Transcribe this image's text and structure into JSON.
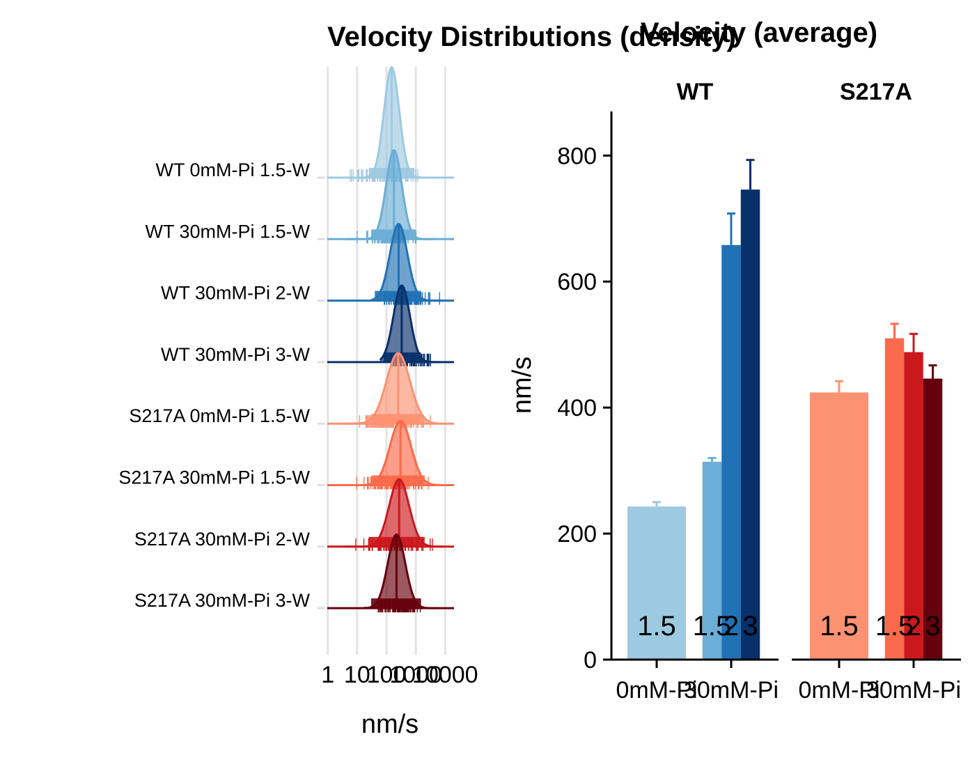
{
  "left_panel": {
    "title": "Velocity Distributions (density)",
    "xlabel": "nm/s",
    "x_ticks": [
      "1",
      "10",
      "100",
      "1000",
      "10000"
    ]
  },
  "right_panel": {
    "title": "Velocity (average)",
    "ylabel": "nm/s",
    "y_ticks": [
      "0",
      "200",
      "400",
      "600",
      "800"
    ],
    "x_ticks": [
      "0mM-Pi",
      "30mM-Pi"
    ]
  },
  "chart_data": [
    {
      "type": "area",
      "title": "Velocity Distributions (density)",
      "xlabel": "nm/s",
      "x_scale": "log10",
      "xlim": [
        0.5,
        20000
      ],
      "grid": true,
      "series": [
        {
          "name": "WT 0mM-Pi 1.5-W",
          "color": "#9ecae1",
          "peak": 150,
          "spread": 0.26,
          "height": 1.8,
          "range": [
            2,
            5000
          ],
          "box": [
            25,
            900
          ]
        },
        {
          "name": "WT 30mM-Pi 1.5-W",
          "color": "#6baed6",
          "peak": 180,
          "spread": 0.27,
          "height": 1.45,
          "range": [
            4,
            4000
          ],
          "box": [
            30,
            1000
          ]
        },
        {
          "name": "WT 30mM-Pi 2-W",
          "color": "#2171b5",
          "peak": 260,
          "spread": 0.3,
          "height": 1.25,
          "range": [
            30,
            9000
          ],
          "box": [
            40,
            1500
          ]
        },
        {
          "name": "WT 30mM-Pi 3-W",
          "color": "#08306b",
          "peak": 330,
          "spread": 0.28,
          "height": 1.25,
          "range": [
            60,
            7000
          ],
          "box": [
            80,
            1500
          ]
        },
        {
          "name": "S217A 0mM-Pi 1.5-W",
          "color": "#fc9272",
          "peak": 250,
          "spread": 0.4,
          "height": 1.15,
          "range": [
            3,
            6000
          ],
          "box": [
            30,
            1500
          ]
        },
        {
          "name": "S217A 30mM-Pi 1.5-W",
          "color": "#fb6a4a",
          "peak": 300,
          "spread": 0.36,
          "height": 1.05,
          "range": [
            5,
            8000
          ],
          "box": [
            30,
            2000
          ]
        },
        {
          "name": "S217A 30mM-Pi 2-W",
          "color": "#cb181d",
          "peak": 270,
          "spread": 0.34,
          "height": 1.1,
          "range": [
            4,
            9000
          ],
          "box": [
            25,
            2000
          ]
        },
        {
          "name": "S217A 30mM-Pi 3-W",
          "color": "#67000d",
          "peak": 220,
          "spread": 0.3,
          "height": 1.2,
          "range": [
            20,
            6000
          ],
          "box": [
            30,
            1500
          ]
        }
      ]
    },
    {
      "type": "bar",
      "title": "Velocity (average)",
      "ylabel": "nm/s",
      "ylim": [
        0,
        870
      ],
      "facets": [
        "WT",
        "S217A"
      ],
      "categories": [
        "0mM-Pi",
        "30mM-Pi"
      ],
      "bars": [
        {
          "facet": "WT",
          "category": "0mM-Pi",
          "label": "1.5",
          "value": 243,
          "error": 7,
          "color": "#9ecae1"
        },
        {
          "facet": "WT",
          "category": "30mM-Pi",
          "label": "1.5",
          "value": 314,
          "error": 6,
          "color": "#6baed6"
        },
        {
          "facet": "WT",
          "category": "30mM-Pi",
          "label": "2",
          "value": 658,
          "error": 50,
          "color": "#2171b5"
        },
        {
          "facet": "WT",
          "category": "30mM-Pi",
          "label": "3",
          "value": 746,
          "error": 47,
          "color": "#08306b"
        },
        {
          "facet": "S217A",
          "category": "0mM-Pi",
          "label": "1.5",
          "value": 424,
          "error": 18,
          "color": "#fc9272"
        },
        {
          "facet": "S217A",
          "category": "30mM-Pi",
          "label": "1.5",
          "value": 510,
          "error": 23,
          "color": "#fb6a4a"
        },
        {
          "facet": "S217A",
          "category": "30mM-Pi",
          "label": "2",
          "value": 488,
          "error": 29,
          "color": "#cb181d"
        },
        {
          "facet": "S217A",
          "category": "30mM-Pi",
          "label": "3",
          "value": 446,
          "error": 21,
          "color": "#67000d"
        }
      ]
    }
  ]
}
